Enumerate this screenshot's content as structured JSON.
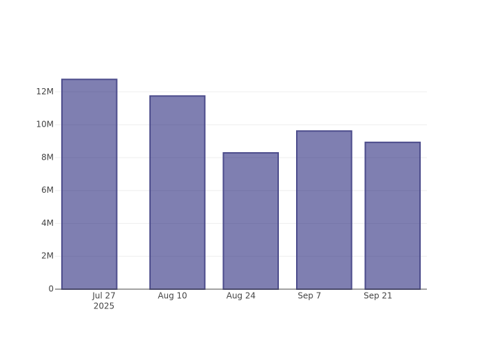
{
  "chart_data": {
    "type": "bar",
    "x": [
      "2025-07-24",
      "2025-08-11",
      "2025-08-26",
      "2025-09-10",
      "2025-09-24"
    ],
    "values": [
      12760000,
      11750000,
      8290000,
      9620000,
      8930000
    ],
    "color": "rgba(0,0,100,0.5)",
    "edge_color": "#4b4b8b",
    "xlim": [
      "2025-07-17",
      "2025-10-01"
    ],
    "xticks": [
      {
        "value": "2025-07-27",
        "label": "Jul 27"
      },
      {
        "value": "2025-08-10",
        "label": "Aug 10"
      },
      {
        "value": "2025-08-24",
        "label": "Aug 24"
      },
      {
        "value": "2025-09-07",
        "label": "Sep 7"
      },
      {
        "value": "2025-09-21",
        "label": "Sep 21"
      }
    ],
    "x_year_label": "2025",
    "ylim": [
      0,
      13400000
    ],
    "yticks": [
      0,
      {
        "value": 2000000,
        "label": "2M"
      },
      {
        "value": 4000000,
        "label": "4M"
      },
      {
        "value": 6000000,
        "label": "6M"
      },
      {
        "value": 8000000,
        "label": "8M"
      },
      {
        "value": 10000000,
        "label": "10M"
      },
      {
        "value": 12000000,
        "label": "12M"
      }
    ],
    "grid": true
  }
}
